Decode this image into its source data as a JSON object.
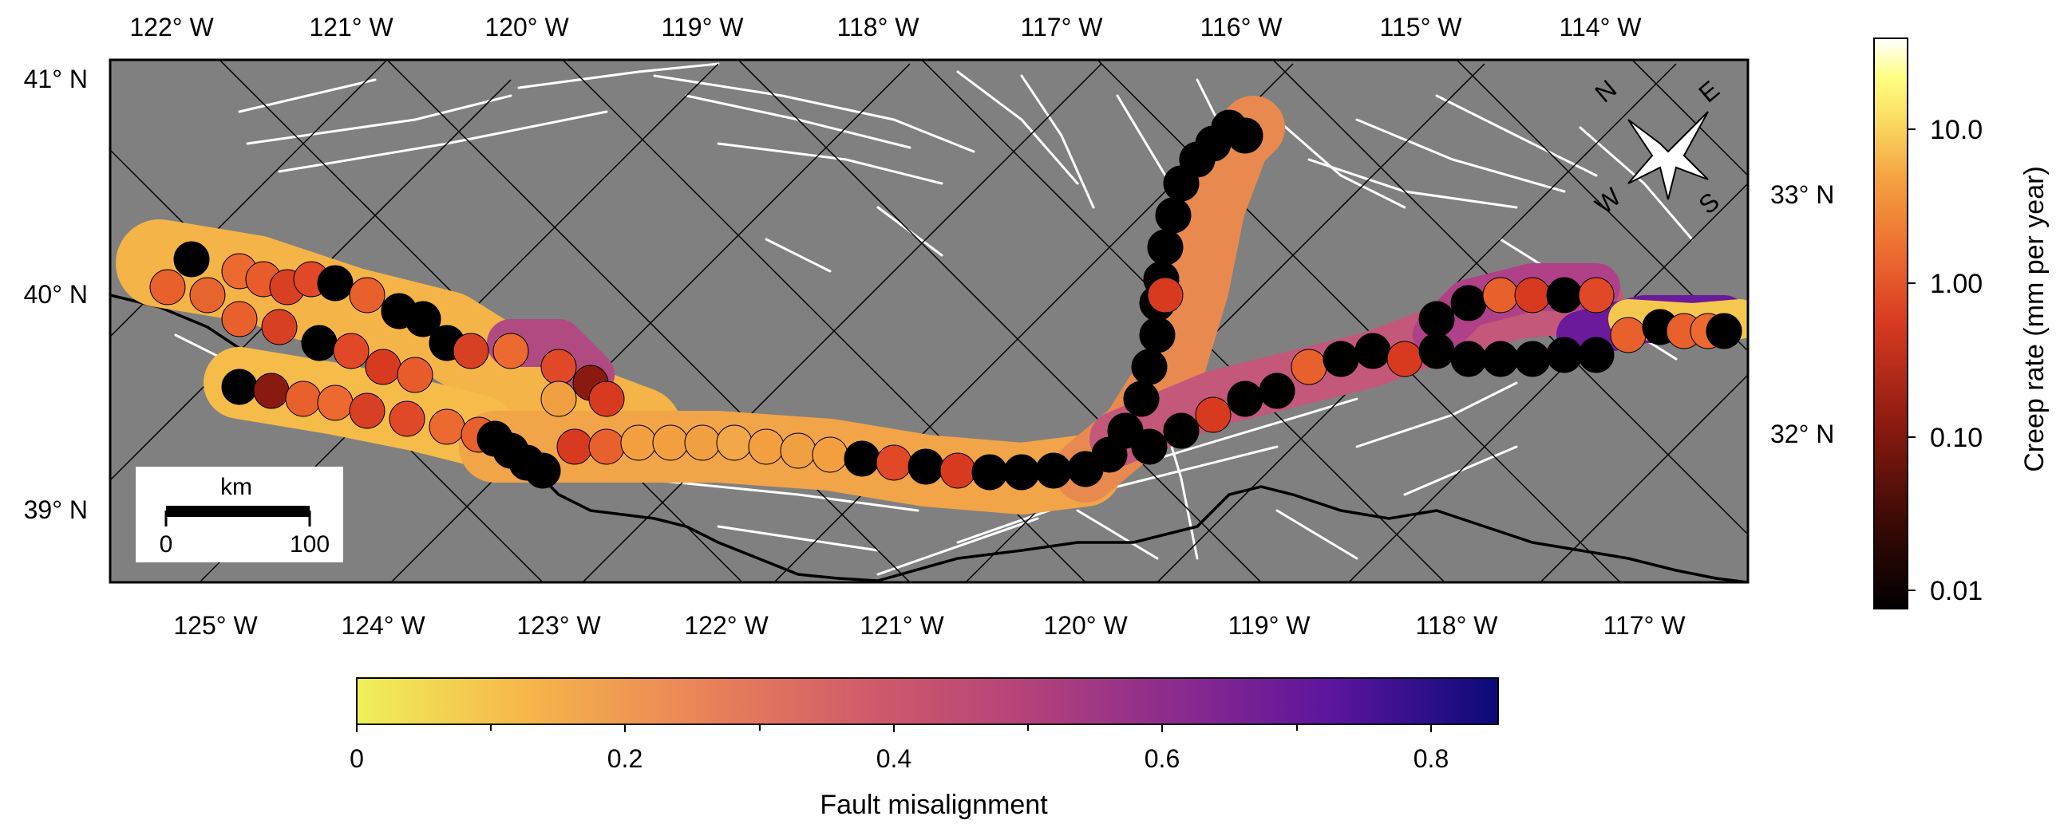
{
  "map": {
    "top_lon_labels": [
      "122° W",
      "121° W",
      "120° W",
      "119° W",
      "118° W",
      "117° W",
      "116° W",
      "115° W",
      "114° W"
    ],
    "bottom_lon_labels": [
      "125° W",
      "124° W",
      "123° W",
      "122° W",
      "121° W",
      "120° W",
      "119° W",
      "118° W",
      "117° W"
    ],
    "left_lat_labels": [
      "41° N",
      "40° N",
      "39° N"
    ],
    "right_lat_labels": [
      "33° N",
      "32° N"
    ],
    "compass": {
      "n": "N",
      "e": "E",
      "s": "S",
      "w": "W"
    },
    "scale_bar": {
      "unit": "km",
      "start": "0",
      "end": "100"
    },
    "colors": {
      "land": "#808080",
      "faults": "#ffffff",
      "coast": "#000000",
      "grid": "#000000"
    }
  },
  "creep_colorbar": {
    "title": "Creep rate (mm per year)",
    "scale": "log",
    "ticks": [
      "10.0",
      "1.00",
      "0.10",
      "0.01"
    ],
    "colormap": [
      "#000000",
      "#3a0a05",
      "#8a1a10",
      "#d83a20",
      "#ec6a30",
      "#f4a040",
      "#fad860",
      "#ffff80",
      "#ffffff"
    ]
  },
  "misalignment_colorbar": {
    "title": "Fault misalignment",
    "ticks": [
      "0",
      "0.2",
      "0.4",
      "0.6",
      "0.8"
    ],
    "colormap": [
      "#f0f05a",
      "#f6b64a",
      "#ea8458",
      "#d05a6a",
      "#b0407c",
      "#8a2a8e",
      "#5a149e",
      "#0a0a78"
    ]
  }
}
